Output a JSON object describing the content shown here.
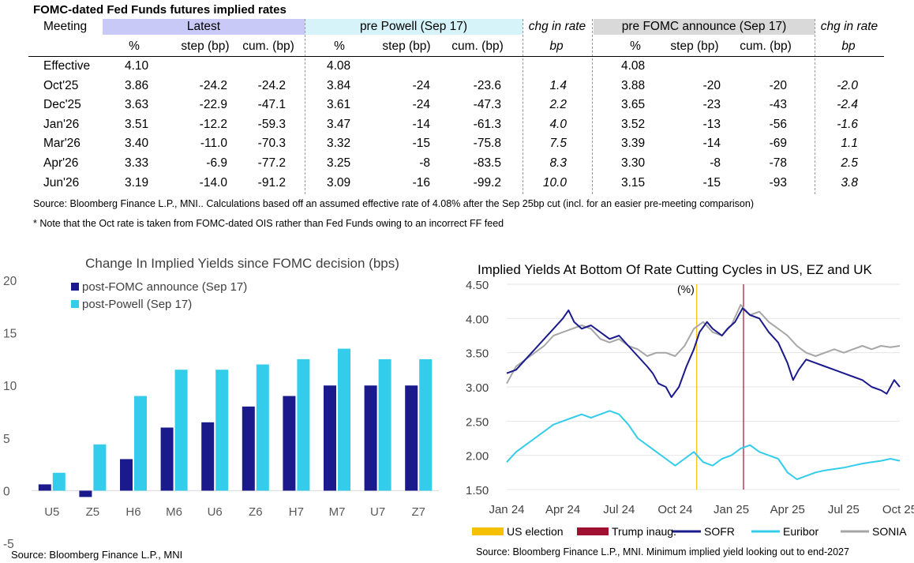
{
  "table": {
    "title": "FOMC-dated Fed Funds futures implied rates",
    "groups": [
      {
        "label": "Latest",
        "color": "#c9c9f7"
      },
      {
        "label": "pre Powell (Sep 17)",
        "color": "#d6f3fa"
      },
      {
        "label": "chg in rate",
        "color": ""
      },
      {
        "label": "pre FOMC announce (Sep 17)",
        "color": "#d9d9d9"
      },
      {
        "label": "chg in rate",
        "color": ""
      }
    ],
    "meeting_header": "Meeting",
    "subheaders": [
      "%",
      "step (bp)",
      "cum. (bp)",
      "%",
      "step (bp)",
      "cum. (bp)",
      "bp",
      "%",
      "step (bp)",
      "cum. (bp)",
      "bp"
    ],
    "rows": [
      [
        "Effective",
        "4.10",
        "",
        "",
        "4.08",
        "",
        "",
        "",
        "4.08",
        "",
        "",
        ""
      ],
      [
        "Oct'25",
        "3.86",
        "-24.2",
        "-24.2",
        "3.84",
        "-24",
        "-23.6",
        "1.4",
        "3.88",
        "-20",
        "-20",
        "-2.0"
      ],
      [
        "Dec'25",
        "3.63",
        "-22.9",
        "-47.1",
        "3.61",
        "-24",
        "-47.3",
        "2.2",
        "3.65",
        "-23",
        "-43",
        "-2.4"
      ],
      [
        "Jan'26",
        "3.51",
        "-12.2",
        "-59.3",
        "3.47",
        "-14",
        "-61.3",
        "4.0",
        "3.52",
        "-13",
        "-56",
        "-1.6"
      ],
      [
        "Mar'26",
        "3.40",
        "-11.0",
        "-70.3",
        "3.32",
        "-15",
        "-75.8",
        "7.5",
        "3.39",
        "-14",
        "-69",
        "1.1"
      ],
      [
        "Apr'26",
        "3.33",
        "-6.9",
        "-77.2",
        "3.25",
        "-8",
        "-83.5",
        "8.3",
        "3.30",
        "-8",
        "-78",
        "2.5"
      ],
      [
        "Jun'26",
        "3.19",
        "-14.0",
        "-91.2",
        "3.09",
        "-16",
        "-99.2",
        "10.0",
        "3.15",
        "-15",
        "-93",
        "3.8"
      ]
    ],
    "source": "Source: Bloomberg Finance L.P., MNI.. Calculations based off an assumed effective rate of 4.08% after the Sep 25bp cut (incl. for an easier pre-meeting comparison)",
    "note": "* Note that the Oct rate is taken from FOMC-dated OIS rather than Fed Funds owing to an incorrect FF feed"
  },
  "chart_data": [
    {
      "type": "bar",
      "title": "Change In Implied Yields since FOMC decision (bps)",
      "categories": [
        "U5",
        "Z5",
        "H6",
        "M6",
        "U6",
        "Z6",
        "H7",
        "M7",
        "U7",
        "Z7"
      ],
      "series": [
        {
          "name": "post-FOMC announce (Sep 17)",
          "color": "#1a1a8c",
          "values": [
            0.6,
            -0.6,
            3.0,
            6.0,
            6.5,
            8.0,
            9.0,
            10.0,
            10.0,
            10.0
          ]
        },
        {
          "name": "post-Powell (Sep 17)",
          "color": "#33ccea",
          "values": [
            1.7,
            4.4,
            9.0,
            11.5,
            11.5,
            12.0,
            12.5,
            13.5,
            12.5,
            12.5
          ]
        }
      ],
      "ylim": [
        -5,
        20
      ],
      "yticks": [
        "20",
        "15",
        "10",
        "5",
        "0",
        "-5"
      ],
      "legend": "top-left",
      "source": "Source: Bloomberg Finance L.P., MNI"
    },
    {
      "type": "line",
      "title": "Implied Yields At Bottom Of Rate Cutting Cycles in US, EZ and UK",
      "unit_label": "(%)",
      "ylim": [
        1.5,
        4.5
      ],
      "yticks": [
        "4.50",
        "4.00",
        "3.50",
        "3.00",
        "2.50",
        "2.00",
        "1.50"
      ],
      "xlim_months": [
        0,
        21
      ],
      "xticks": [
        {
          "label": "Jan 24",
          "m": 0
        },
        {
          "label": "Apr 24",
          "m": 3
        },
        {
          "label": "Jul 24",
          "m": 6
        },
        {
          "label": "Oct 24",
          "m": 9
        },
        {
          "label": "Jan 25",
          "m": 12
        },
        {
          "label": "Apr 25",
          "m": 15
        },
        {
          "label": "Jul 25",
          "m": 18
        },
        {
          "label": "Oct 25",
          "m": 21
        }
      ],
      "events": [
        {
          "name": "US election",
          "m": 10.15,
          "color": "#f5c000"
        },
        {
          "name": "Trump inaug.",
          "m": 12.65,
          "color": "#a01030"
        }
      ],
      "series": [
        {
          "name": "SOFR",
          "color": "#1a1a8c",
          "points": [
            [
              0,
              3.2
            ],
            [
              0.5,
              3.25
            ],
            [
              1,
              3.4
            ],
            [
              1.5,
              3.55
            ],
            [
              2,
              3.7
            ],
            [
              2.5,
              3.85
            ],
            [
              3,
              4.0
            ],
            [
              3.3,
              4.12
            ],
            [
              3.6,
              3.95
            ],
            [
              4,
              3.85
            ],
            [
              4.5,
              3.9
            ],
            [
              5,
              3.8
            ],
            [
              5.5,
              3.7
            ],
            [
              6,
              3.75
            ],
            [
              6.5,
              3.6
            ],
            [
              7,
              3.45
            ],
            [
              7.5,
              3.3
            ],
            [
              7.8,
              3.2
            ],
            [
              8.1,
              3.05
            ],
            [
              8.5,
              3.0
            ],
            [
              8.8,
              2.85
            ],
            [
              9.2,
              3.0
            ],
            [
              9.6,
              3.3
            ],
            [
              10,
              3.55
            ],
            [
              10.3,
              3.8
            ],
            [
              10.7,
              3.95
            ],
            [
              11,
              3.85
            ],
            [
              11.5,
              3.75
            ],
            [
              11.8,
              3.85
            ],
            [
              12.2,
              3.95
            ],
            [
              12.6,
              4.15
            ],
            [
              13,
              4.05
            ],
            [
              13.5,
              4.0
            ],
            [
              14,
              3.8
            ],
            [
              14.5,
              3.65
            ],
            [
              15,
              3.35
            ],
            [
              15.3,
              3.1
            ],
            [
              15.6,
              3.25
            ],
            [
              16,
              3.4
            ],
            [
              16.5,
              3.35
            ],
            [
              17,
              3.3
            ],
            [
              17.5,
              3.25
            ],
            [
              18,
              3.2
            ],
            [
              18.5,
              3.15
            ],
            [
              19,
              3.1
            ],
            [
              19.5,
              3.0
            ],
            [
              20,
              2.95
            ],
            [
              20.3,
              2.9
            ],
            [
              20.7,
              3.1
            ],
            [
              21,
              3.0
            ]
          ]
        },
        {
          "name": "Euribor",
          "color": "#33ccea",
          "points": [
            [
              0,
              1.9
            ],
            [
              0.5,
              2.05
            ],
            [
              1,
              2.15
            ],
            [
              1.5,
              2.25
            ],
            [
              2,
              2.35
            ],
            [
              2.5,
              2.45
            ],
            [
              3,
              2.5
            ],
            [
              3.5,
              2.55
            ],
            [
              4,
              2.6
            ],
            [
              4.5,
              2.55
            ],
            [
              5,
              2.6
            ],
            [
              5.5,
              2.65
            ],
            [
              6,
              2.6
            ],
            [
              6.5,
              2.45
            ],
            [
              7,
              2.25
            ],
            [
              7.5,
              2.15
            ],
            [
              8,
              2.05
            ],
            [
              8.5,
              1.95
            ],
            [
              9,
              1.85
            ],
            [
              9.5,
              1.95
            ],
            [
              10,
              2.05
            ],
            [
              10.5,
              1.9
            ],
            [
              11,
              1.85
            ],
            [
              11.5,
              1.95
            ],
            [
              12,
              2.0
            ],
            [
              12.5,
              2.1
            ],
            [
              13,
              2.15
            ],
            [
              13.5,
              2.05
            ],
            [
              14,
              2.0
            ],
            [
              14.5,
              1.95
            ],
            [
              15,
              1.75
            ],
            [
              15.5,
              1.65
            ],
            [
              16,
              1.7
            ],
            [
              16.5,
              1.75
            ],
            [
              17,
              1.78
            ],
            [
              17.5,
              1.8
            ],
            [
              18,
              1.82
            ],
            [
              18.5,
              1.85
            ],
            [
              19,
              1.88
            ],
            [
              19.5,
              1.9
            ],
            [
              20,
              1.92
            ],
            [
              20.5,
              1.95
            ],
            [
              21,
              1.92
            ]
          ]
        },
        {
          "name": "SONIA",
          "color": "#a6a6a6",
          "points": [
            [
              0,
              3.05
            ],
            [
              0.5,
              3.3
            ],
            [
              1,
              3.4
            ],
            [
              1.5,
              3.5
            ],
            [
              2,
              3.6
            ],
            [
              2.5,
              3.75
            ],
            [
              3,
              3.8
            ],
            [
              3.5,
              3.85
            ],
            [
              4,
              3.9
            ],
            [
              4.5,
              3.85
            ],
            [
              5,
              3.7
            ],
            [
              5.5,
              3.65
            ],
            [
              6,
              3.7
            ],
            [
              6.5,
              3.6
            ],
            [
              7,
              3.55
            ],
            [
              7.5,
              3.45
            ],
            [
              8,
              3.5
            ],
            [
              8.5,
              3.5
            ],
            [
              9,
              3.45
            ],
            [
              9.5,
              3.6
            ],
            [
              10,
              3.85
            ],
            [
              10.5,
              3.95
            ],
            [
              11,
              3.8
            ],
            [
              11.5,
              3.75
            ],
            [
              12,
              3.9
            ],
            [
              12.5,
              4.2
            ],
            [
              13,
              4.05
            ],
            [
              13.5,
              4.1
            ],
            [
              14,
              3.95
            ],
            [
              14.5,
              3.85
            ],
            [
              15,
              3.75
            ],
            [
              15.5,
              3.6
            ],
            [
              16,
              3.5
            ],
            [
              16.5,
              3.45
            ],
            [
              17,
              3.5
            ],
            [
              17.5,
              3.55
            ],
            [
              18,
              3.5
            ],
            [
              18.5,
              3.55
            ],
            [
              19,
              3.6
            ],
            [
              19.5,
              3.55
            ],
            [
              20,
              3.6
            ],
            [
              20.5,
              3.58
            ],
            [
              21,
              3.6
            ]
          ]
        }
      ],
      "legend": [
        "US election",
        "Trump inaug.",
        "SOFR",
        "Euribor",
        "SONIA"
      ],
      "source": "Source: Bloomberg Finance L.P., MNI. Minimum implied yield looking out to end-2027"
    }
  ]
}
